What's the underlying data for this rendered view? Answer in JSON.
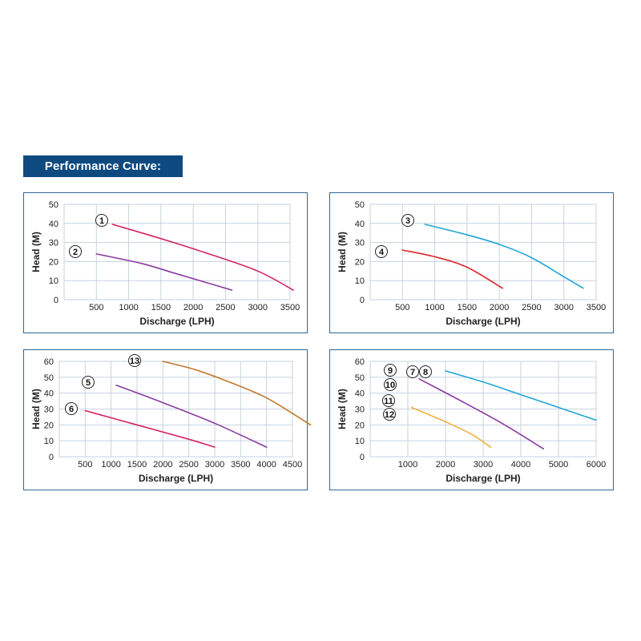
{
  "page": {
    "title": "Performance Curve:",
    "title_bg": "#0e4a80",
    "panel_border": "#2f6696",
    "grid_color": "#c8d2de"
  },
  "chart_data": [
    {
      "type": "line",
      "xlabel": "Discharge (LPH)",
      "ylabel": "Head (M)",
      "xlim": [
        0,
        3500
      ],
      "ylim": [
        0,
        50
      ],
      "x_ticks": [
        500,
        1000,
        1500,
        2000,
        2500,
        3000,
        3500
      ],
      "y_ticks": [
        0,
        10,
        20,
        30,
        40,
        50
      ],
      "grid": true,
      "series": [
        {
          "marker": "1",
          "color": "#d4245e",
          "points": [
            [
              750,
              39.5
            ],
            [
              1500,
              32
            ],
            [
              2200,
              24.5
            ],
            [
              3000,
              15
            ],
            [
              3550,
              5
            ]
          ]
        },
        {
          "marker": "2",
          "color": "#8a3aa0",
          "points": [
            [
              500,
              24
            ],
            [
              1200,
              19
            ],
            [
              1700,
              14
            ],
            [
              2600,
              5
            ]
          ]
        }
      ]
    },
    {
      "type": "line",
      "xlabel": "Discharge (LPH)",
      "ylabel": "Head (M)",
      "xlim": [
        0,
        3500
      ],
      "ylim": [
        0,
        50
      ],
      "x_ticks": [
        500,
        1000,
        1500,
        2000,
        2500,
        3000,
        3500
      ],
      "y_ticks": [
        0,
        10,
        20,
        30,
        40,
        50
      ],
      "grid": true,
      "series": [
        {
          "marker": "3",
          "color": "#1ea6d6",
          "points": [
            [
              850,
              39.5
            ],
            [
              1500,
              34
            ],
            [
              2000,
              29
            ],
            [
              2500,
              22
            ],
            [
              3000,
              12
            ],
            [
              3300,
              6
            ]
          ]
        },
        {
          "marker": "4",
          "color": "#d8262a",
          "points": [
            [
              500,
              26
            ],
            [
              1000,
              22.5
            ],
            [
              1500,
              17
            ],
            [
              2050,
              6
            ]
          ]
        }
      ]
    },
    {
      "type": "line",
      "xlabel": "Discharge (LPH)",
      "ylabel": "Head (M)",
      "xlim": [
        0,
        4500
      ],
      "ylim": [
        0,
        60
      ],
      "x_ticks": [
        500,
        1000,
        1500,
        2000,
        2500,
        3000,
        3500,
        4000,
        4500
      ],
      "y_ticks": [
        0,
        10,
        20,
        30,
        40,
        50,
        60
      ],
      "grid": true,
      "series": [
        {
          "marker": "13",
          "color": "#c0782c",
          "points": [
            [
              2000,
              60
            ],
            [
              2600,
              55
            ],
            [
              3200,
              48
            ],
            [
              4000,
              37
            ],
            [
              4850,
              20
            ]
          ]
        },
        {
          "marker": "5",
          "color": "#8a3aa0",
          "points": [
            [
              1100,
              45
            ],
            [
              2000,
              34
            ],
            [
              3000,
              21
            ],
            [
              4000,
              6
            ]
          ]
        },
        {
          "marker": "6",
          "color": "#d4245e",
          "points": [
            [
              500,
              29
            ],
            [
              1500,
              20
            ],
            [
              2500,
              11
            ],
            [
              3000,
              6
            ]
          ]
        }
      ]
    },
    {
      "type": "line",
      "xlabel": "Discharge (LPH)",
      "ylabel": "Head (M)",
      "xlim": [
        0,
        6000
      ],
      "ylim": [
        0,
        60
      ],
      "x_ticks": [
        1000,
        2000,
        3000,
        4000,
        5000,
        6000
      ],
      "y_ticks": [
        0,
        10,
        20,
        30,
        40,
        50,
        60
      ],
      "grid": true,
      "series": [
        {
          "marker": "7 8",
          "color": "#1ea6d6",
          "points": [
            [
              2000,
              54
            ],
            [
              3000,
              47
            ],
            [
              4000,
              39
            ],
            [
              5000,
              31
            ],
            [
              6000,
              23
            ]
          ]
        },
        {
          "marker": "9 10",
          "color": "#8a3aa0",
          "points": [
            [
              1300,
              49
            ],
            [
              2500,
              34
            ],
            [
              3500,
              21
            ],
            [
              4600,
              5
            ]
          ]
        },
        {
          "marker": "11 12",
          "color": "#f0b040",
          "points": [
            [
              1100,
              31
            ],
            [
              2000,
              22
            ],
            [
              2700,
              14
            ],
            [
              3200,
              6
            ]
          ]
        }
      ]
    }
  ],
  "markers": [
    {
      "chart": 0,
      "label": "1"
    },
    {
      "chart": 0,
      "label": "2"
    },
    {
      "chart": 1,
      "label": "3"
    },
    {
      "chart": 1,
      "label": "4"
    },
    {
      "chart": 2,
      "label": "13"
    },
    {
      "chart": 2,
      "label": "5"
    },
    {
      "chart": 2,
      "label": "6"
    },
    {
      "chart": 3,
      "label": "9"
    },
    {
      "chart": 3,
      "label": "7"
    },
    {
      "chart": 3,
      "label": "8"
    },
    {
      "chart": 3,
      "label": "10"
    },
    {
      "chart": 3,
      "label": "11"
    },
    {
      "chart": 3,
      "label": "12"
    }
  ]
}
